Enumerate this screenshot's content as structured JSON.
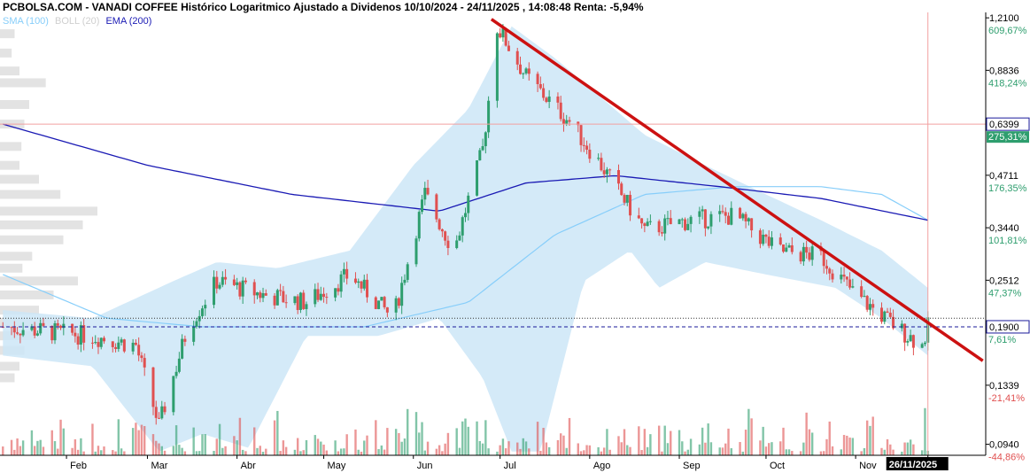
{
  "header": {
    "title": "PCBOLSA.COM - VANADI COFFEE Histórico Logaritmico Ajustado a Dividenos 10/10/2024 - 24/11/2025 , 14:08:48 Renta: -5,94%"
  },
  "legend": {
    "items": [
      {
        "label": "SMA (100)",
        "color": "#87cefa"
      },
      {
        "label": "BOLL (20)",
        "color": "#cfcfcf"
      },
      {
        "label": "EMA (200)",
        "color": "#1a1ab4"
      }
    ]
  },
  "colors": {
    "up": "#2e9e6e",
    "down": "#e05050",
    "trendline": "#cc1111",
    "band_fill": "#cde6f7",
    "sma": "#87cefa",
    "ema": "#1a1ab4",
    "percent_positive": "#2e9e6e",
    "percent_negative": "#e05050"
  },
  "chart_data": {
    "type": "candlestick",
    "scale": "log",
    "ylim": [
      0.088,
      1.25
    ],
    "xlim": [
      "2025-01-09",
      "2025-12-16"
    ],
    "y_ticks": [
      {
        "price": "1,2100",
        "pct": "609,67%",
        "value": 1.21
      },
      {
        "price": "0,8836",
        "pct": "418,24%",
        "value": 0.8836
      },
      {
        "price": "0,6399",
        "pct": "275,31%",
        "value": 0.6399,
        "boxed": true
      },
      {
        "price": "0,4711",
        "pct": "176,35%",
        "value": 0.4711
      },
      {
        "price": "0,3440",
        "pct": "101,81%",
        "value": 0.344
      },
      {
        "price": "0,2512",
        "pct": "47,37%",
        "value": 0.2512
      },
      {
        "price": "0,1900",
        "pct": "7,61%",
        "value": 0.19,
        "boxed": true
      },
      {
        "price": "0,1339",
        "pct": "-21,41%",
        "value": 0.1339
      },
      {
        "price": "0,0940",
        "pct": "-44,86%",
        "value": 0.094
      }
    ],
    "x_ticks": [
      {
        "label": "Feb",
        "date": "2025-02-01"
      },
      {
        "label": "Mar",
        "date": "2025-03-01"
      },
      {
        "label": "Abr",
        "date": "2025-04-01"
      },
      {
        "label": "May",
        "date": "2025-05-01"
      },
      {
        "label": "Jun",
        "date": "2025-06-01"
      },
      {
        "label": "Jul",
        "date": "2025-07-01"
      },
      {
        "label": "Ago",
        "date": "2025-08-01"
      },
      {
        "label": "Sep",
        "date": "2025-09-01"
      },
      {
        "label": "Oct",
        "date": "2025-10-01"
      },
      {
        "label": "Nov",
        "date": "2025-11-01"
      },
      {
        "label": "26/11/2025",
        "date": "2025-11-26",
        "boxed": true
      }
    ],
    "last_price": 0.19,
    "resistance_line": 0.6399,
    "dotted_level": 0.2,
    "cursor_date": "2025-11-26",
    "trendline": {
      "start": {
        "date": "2025-06-28",
        "value": 1.2
      },
      "end": {
        "date": "2025-12-15",
        "value": 0.155
      }
    },
    "price_path": [
      {
        "date": "2025-01-10",
        "value": 0.19
      },
      {
        "date": "2025-01-25",
        "value": 0.185
      },
      {
        "date": "2025-02-10",
        "value": 0.18
      },
      {
        "date": "2025-02-25",
        "value": 0.17
      },
      {
        "date": "2025-03-05",
        "value": 0.105
      },
      {
        "date": "2025-03-15",
        "value": 0.19
      },
      {
        "date": "2025-03-25",
        "value": 0.25
      },
      {
        "date": "2025-04-10",
        "value": 0.23
      },
      {
        "date": "2025-04-25",
        "value": 0.22
      },
      {
        "date": "2025-05-10",
        "value": 0.26
      },
      {
        "date": "2025-05-25",
        "value": 0.2
      },
      {
        "date": "2025-06-05",
        "value": 0.42
      },
      {
        "date": "2025-06-15",
        "value": 0.3
      },
      {
        "date": "2025-06-25",
        "value": 0.55
      },
      {
        "date": "2025-06-30",
        "value": 1.15
      },
      {
        "date": "2025-07-10",
        "value": 0.85
      },
      {
        "date": "2025-07-25",
        "value": 0.65
      },
      {
        "date": "2025-08-05",
        "value": 0.5
      },
      {
        "date": "2025-08-20",
        "value": 0.34
      },
      {
        "date": "2025-09-05",
        "value": 0.36
      },
      {
        "date": "2025-09-20",
        "value": 0.37
      },
      {
        "date": "2025-10-05",
        "value": 0.3
      },
      {
        "date": "2025-10-20",
        "value": 0.29
      },
      {
        "date": "2025-11-01",
        "value": 0.23
      },
      {
        "date": "2025-11-15",
        "value": 0.19
      },
      {
        "date": "2025-11-24",
        "value": 0.17
      },
      {
        "date": "2025-11-26",
        "value": 0.19
      }
    ],
    "ema200": [
      {
        "date": "2025-01-10",
        "value": 0.64
      },
      {
        "date": "2025-03-01",
        "value": 0.5
      },
      {
        "date": "2025-04-20",
        "value": 0.42
      },
      {
        "date": "2025-06-10",
        "value": 0.38
      },
      {
        "date": "2025-07-10",
        "value": 0.45
      },
      {
        "date": "2025-08-10",
        "value": 0.47
      },
      {
        "date": "2025-09-15",
        "value": 0.44
      },
      {
        "date": "2025-10-20",
        "value": 0.41
      },
      {
        "date": "2025-11-26",
        "value": 0.36
      }
    ],
    "sma100": [
      {
        "date": "2025-01-10",
        "value": 0.26
      },
      {
        "date": "2025-02-15",
        "value": 0.2
      },
      {
        "date": "2025-03-20",
        "value": 0.19
      },
      {
        "date": "2025-05-15",
        "value": 0.19
      },
      {
        "date": "2025-06-20",
        "value": 0.22
      },
      {
        "date": "2025-07-20",
        "value": 0.33
      },
      {
        "date": "2025-08-20",
        "value": 0.42
      },
      {
        "date": "2025-09-20",
        "value": 0.44
      },
      {
        "date": "2025-10-20",
        "value": 0.44
      },
      {
        "date": "2025-11-10",
        "value": 0.42
      },
      {
        "date": "2025-11-26",
        "value": 0.36
      }
    ],
    "bollinger_upper": [
      {
        "date": "2025-01-10",
        "value": 0.21
      },
      {
        "date": "2025-02-10",
        "value": 0.2
      },
      {
        "date": "2025-03-10",
        "value": 0.25
      },
      {
        "date": "2025-03-25",
        "value": 0.28
      },
      {
        "date": "2025-04-15",
        "value": 0.27
      },
      {
        "date": "2025-05-10",
        "value": 0.3
      },
      {
        "date": "2025-06-01",
        "value": 0.5
      },
      {
        "date": "2025-06-20",
        "value": 0.7
      },
      {
        "date": "2025-07-05",
        "value": 1.15
      },
      {
        "date": "2025-07-20",
        "value": 0.95
      },
      {
        "date": "2025-08-05",
        "value": 0.75
      },
      {
        "date": "2025-08-20",
        "value": 0.6
      },
      {
        "date": "2025-09-10",
        "value": 0.5
      },
      {
        "date": "2025-10-01",
        "value": 0.42
      },
      {
        "date": "2025-10-20",
        "value": 0.36
      },
      {
        "date": "2025-11-10",
        "value": 0.3
      },
      {
        "date": "2025-11-26",
        "value": 0.24
      }
    ],
    "bollinger_lower": [
      {
        "date": "2025-01-10",
        "value": 0.16
      },
      {
        "date": "2025-02-10",
        "value": 0.15
      },
      {
        "date": "2025-03-05",
        "value": 0.09
      },
      {
        "date": "2025-03-20",
        "value": 0.1
      },
      {
        "date": "2025-04-05",
        "value": 0.092
      },
      {
        "date": "2025-04-25",
        "value": 0.18
      },
      {
        "date": "2025-05-20",
        "value": 0.18
      },
      {
        "date": "2025-06-10",
        "value": 0.2
      },
      {
        "date": "2025-06-25",
        "value": 0.14
      },
      {
        "date": "2025-07-05",
        "value": 0.09
      },
      {
        "date": "2025-07-15",
        "value": 0.09
      },
      {
        "date": "2025-07-30",
        "value": 0.25
      },
      {
        "date": "2025-08-15",
        "value": 0.3
      },
      {
        "date": "2025-08-25",
        "value": 0.24
      },
      {
        "date": "2025-09-10",
        "value": 0.28
      },
      {
        "date": "2025-10-01",
        "value": 0.26
      },
      {
        "date": "2025-10-25",
        "value": 0.24
      },
      {
        "date": "2025-11-10",
        "value": 0.2
      },
      {
        "date": "2025-11-26",
        "value": 0.16
      }
    ],
    "volume_profile": [
      {
        "price": 1.1,
        "strength": 0.15
      },
      {
        "price": 0.98,
        "strength": 0.12
      },
      {
        "price": 0.88,
        "strength": 0.2
      },
      {
        "price": 0.82,
        "strength": 0.47
      },
      {
        "price": 0.72,
        "strength": 0.3
      },
      {
        "price": 0.64,
        "strength": 0.25
      },
      {
        "price": 0.56,
        "strength": 0.22
      },
      {
        "price": 0.5,
        "strength": 0.2
      },
      {
        "price": 0.46,
        "strength": 0.4
      },
      {
        "price": 0.42,
        "strength": 0.62
      },
      {
        "price": 0.38,
        "strength": 1.0
      },
      {
        "price": 0.35,
        "strength": 0.85
      },
      {
        "price": 0.32,
        "strength": 0.65
      },
      {
        "price": 0.29,
        "strength": 0.33
      },
      {
        "price": 0.27,
        "strength": 0.23
      },
      {
        "price": 0.25,
        "strength": 0.8
      },
      {
        "price": 0.23,
        "strength": 0.55
      },
      {
        "price": 0.21,
        "strength": 0.4
      },
      {
        "price": 0.195,
        "strength": 0.6
      },
      {
        "price": 0.18,
        "strength": 0.35
      },
      {
        "price": 0.165,
        "strength": 0.25
      },
      {
        "price": 0.15,
        "strength": 0.2
      },
      {
        "price": 0.14,
        "strength": 0.15
      }
    ]
  }
}
